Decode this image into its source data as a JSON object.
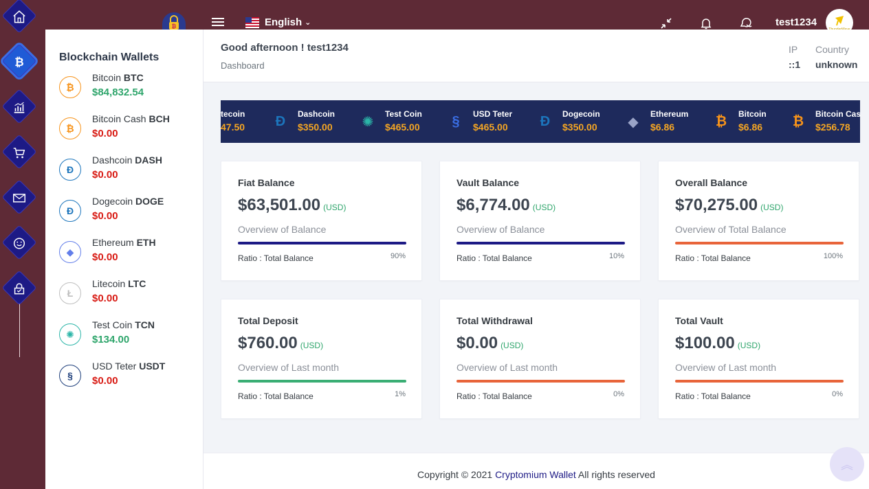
{
  "header": {
    "language": "English",
    "username": "test1234",
    "avatar_text": "ThunderWave"
  },
  "sidebar": {
    "title": "Blockchain Wallets",
    "wallets": [
      {
        "name": "Bitcoin",
        "symbol": "BTC",
        "balance": "$84,832.54",
        "icon": "bitcoin-icon",
        "color": "#f7931a",
        "trend": "positive"
      },
      {
        "name": "Bitcoin Cash",
        "symbol": "BCH",
        "balance": "$0.00",
        "icon": "bitcoin-cash-icon",
        "color": "#f7931a",
        "trend": "negative"
      },
      {
        "name": "Dashcoin",
        "symbol": "DASH",
        "balance": "$0.00",
        "icon": "dash-icon",
        "color": "#1c75bc",
        "trend": "negative"
      },
      {
        "name": "Dogecoin",
        "symbol": "DOGE",
        "balance": "$0.00",
        "icon": "dogecoin-icon",
        "color": "#1c75bc",
        "trend": "negative"
      },
      {
        "name": "Ethereum",
        "symbol": "ETH",
        "balance": "$0.00",
        "icon": "ethereum-icon",
        "color": "#627eea",
        "trend": "negative"
      },
      {
        "name": "Litecoin",
        "symbol": "LTC",
        "balance": "$0.00",
        "icon": "litecoin-icon",
        "color": "#bebebe",
        "trend": "negative"
      },
      {
        "name": "Test Coin",
        "symbol": "TCN",
        "balance": "$134.00",
        "icon": "testcoin-icon",
        "color": "#2bb5a8",
        "trend": "positive"
      },
      {
        "name": "USD Teter",
        "symbol": "USDT",
        "balance": "$0.00",
        "icon": "usdt-icon",
        "color": "#1c3d7a",
        "trend": "negative"
      }
    ]
  },
  "page": {
    "greeting": "Good afternoon ! test1234",
    "breadcrumb": "Dashboard",
    "ip_label": "IP",
    "ip_value": "::1",
    "country_label": "Country",
    "country_value": "unknown"
  },
  "ticker": [
    {
      "name": "tecoin",
      "price": "47.50",
      "icon": "litecoin-icon"
    },
    {
      "name": "Dashcoin",
      "price": "$350.00",
      "icon": "dash-icon"
    },
    {
      "name": "Test Coin",
      "price": "$465.00",
      "icon": "testcoin-icon"
    },
    {
      "name": "USD Teter",
      "price": "$465.00",
      "icon": "usdt-icon"
    },
    {
      "name": "Dogecoin",
      "price": "$350.00",
      "icon": "dogecoin-icon"
    },
    {
      "name": "Ethereum",
      "price": "$6.86",
      "icon": "ethereum-icon"
    },
    {
      "name": "Bitcoin",
      "price": "$6.86",
      "icon": "bitcoin-icon"
    },
    {
      "name": "Bitcoin Cash",
      "price": "$256.78",
      "icon": "bitcoin-cash-icon"
    }
  ],
  "cards": [
    {
      "title": "Fiat Balance",
      "amount": "$63,501.00",
      "currency": "(USD)",
      "subtitle": "Overview of Balance",
      "ratio_label": "Ratio : Total Balance",
      "percent_label": "90%",
      "fill": 1.0,
      "bar_color": "#1d1a85"
    },
    {
      "title": "Vault Balance",
      "amount": "$6,774.00",
      "currency": "(USD)",
      "subtitle": "Overview of Balance",
      "ratio_label": "Ratio : Total Balance",
      "percent_label": "10%",
      "fill": 1.0,
      "bar_color": "#1d1a85"
    },
    {
      "title": "Overall Balance",
      "amount": "$70,275.00",
      "currency": "(USD)",
      "subtitle": "Overview of Total Balance",
      "ratio_label": "Ratio : Total Balance",
      "percent_label": "100%",
      "fill": 1.0,
      "bar_color": "#e8643a"
    },
    {
      "title": "Total Deposit",
      "amount": "$760.00",
      "currency": "(USD)",
      "subtitle": "Overview of Last month",
      "ratio_label": "Ratio : Total Balance",
      "percent_label": "1%",
      "fill": 1.0,
      "bar_color": "#3aae74"
    },
    {
      "title": "Total Withdrawal",
      "amount": "$0.00",
      "currency": "(USD)",
      "subtitle": "Overview of Last month",
      "ratio_label": "Ratio : Total Balance",
      "percent_label": "0%",
      "fill": 1.0,
      "bar_color": "#e8643a"
    },
    {
      "title": "Total Vault",
      "amount": "$100.00",
      "currency": "(USD)",
      "subtitle": "Overview of Last month",
      "ratio_label": "Ratio : Total Balance",
      "percent_label": "0%",
      "fill": 1.0,
      "bar_color": "#e8643a"
    }
  ],
  "footer": {
    "prefix": "Copyright © 2021 ",
    "brand": "Cryptomium Wallet",
    "suffix": " All rights reserved"
  }
}
